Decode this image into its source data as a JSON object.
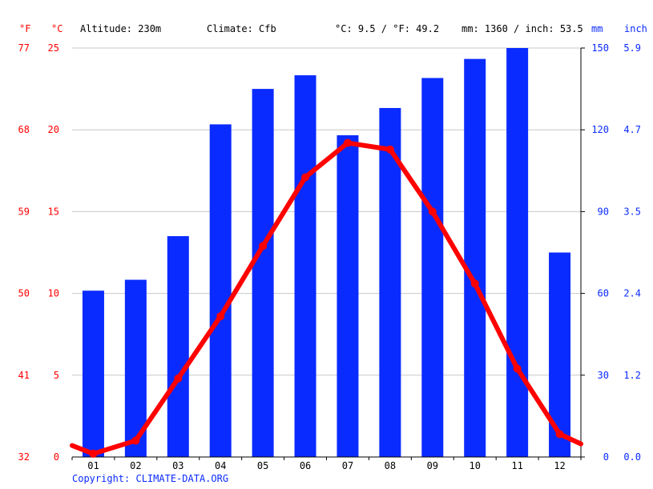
{
  "header": {
    "unit_f": "°F",
    "unit_c": "°C",
    "altitude": "Altitude: 230m",
    "climate": "Climate: Cfb",
    "temp_avg": "°C: 9.5 / °F: 49.2",
    "precip_total": "mm: 1360 / inch: 53.5",
    "unit_mm": "mm",
    "unit_inch": "inch"
  },
  "copyright": "Copyright: CLIMATE-DATA.ORG",
  "colors": {
    "temperature": "#ff0000",
    "precipitation": "#0a2bff",
    "grid": "#c8c8c8",
    "axis": "#000000"
  },
  "chart_data": {
    "type": "bar+line",
    "categories": [
      "01",
      "02",
      "03",
      "04",
      "05",
      "06",
      "07",
      "08",
      "09",
      "10",
      "11",
      "12"
    ],
    "series": [
      {
        "name": "",
        "kind": "bar",
        "axis": "mm",
        "values": [
          61,
          65,
          81,
          122,
          135,
          140,
          118,
          128,
          139,
          146,
          150,
          75
        ]
      },
      {
        "name": "",
        "kind": "line",
        "axis": "°C",
        "values": [
          0.2,
          1.0,
          4.8,
          8.6,
          12.9,
          17.1,
          19.2,
          18.8,
          15.0,
          10.6,
          5.4,
          1.4
        ]
      }
    ],
    "line_extends": {
      "x_start_value": 0.7,
      "x_end_value": 0.8
    },
    "axes": {
      "left_f": {
        "ticks": [
          "77",
          "68",
          "59",
          "50",
          "41",
          "32"
        ]
      },
      "left_c": {
        "ticks": [
          "25",
          "20",
          "15",
          "10",
          "5",
          "0"
        ],
        "range": [
          0,
          25
        ]
      },
      "right_mm": {
        "ticks": [
          "150",
          "120",
          "90",
          "60",
          "30",
          "0"
        ],
        "range": [
          0,
          150
        ]
      },
      "right_inch": {
        "ticks": [
          "5.9",
          "4.7",
          "3.5",
          "2.4",
          "1.2",
          "0.0"
        ]
      }
    },
    "grid": true
  }
}
